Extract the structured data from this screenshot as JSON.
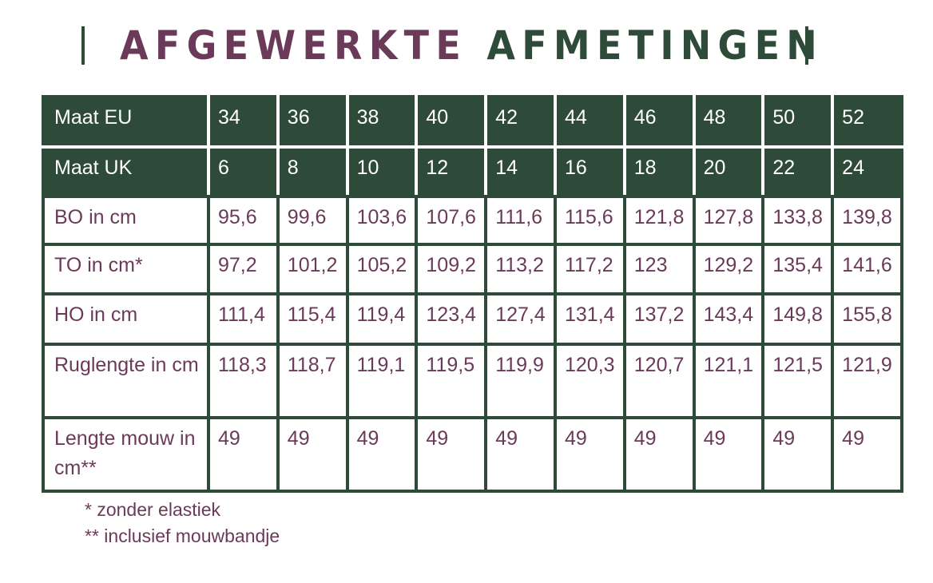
{
  "title": {
    "part1": "AFGEWERKTE",
    "part2": "AFMETINGEN"
  },
  "colors": {
    "green": "#2e4a38",
    "purple": "#6b3a58"
  },
  "table": {
    "rows": [
      {
        "label": "Maat EU",
        "header": true,
        "values": [
          "34",
          "36",
          "38",
          "40",
          "42",
          "44",
          "46",
          "48",
          "50",
          "52"
        ]
      },
      {
        "label": "Maat UK",
        "header": true,
        "values": [
          "6",
          "8",
          "10",
          "12",
          "14",
          "16",
          "18",
          "20",
          "22",
          "24"
        ]
      },
      {
        "label": "BO in cm",
        "values": [
          "95,6",
          "99,6",
          "103,6",
          "107,6",
          "111,6",
          "115,6",
          "121,8",
          "127,8",
          "133,8",
          "139,8"
        ]
      },
      {
        "label": "TO in cm*",
        "values": [
          "97,2",
          "101,2",
          "105,2",
          "109,2",
          "113,2",
          "117,2",
          "123",
          "129,2",
          "135,4",
          "141,6"
        ]
      },
      {
        "label": "HO in cm",
        "values": [
          "111,4",
          "115,4",
          "119,4",
          "123,4",
          "127,4",
          "131,4",
          "137,2",
          "143,4",
          "149,8",
          "155,8"
        ]
      },
      {
        "label": "Ruglengte in cm",
        "values": [
          "118,3",
          "118,7",
          "119,1",
          "119,5",
          "119,9",
          "120,3",
          "120,7",
          "121,1",
          "121,5",
          "121,9"
        ]
      },
      {
        "label": "Lengte mouw in cm**",
        "values": [
          "49",
          "49",
          "49",
          "49",
          "49",
          "49",
          "49",
          "49",
          "49",
          "49"
        ]
      }
    ]
  },
  "notes": [
    "* zonder elastiek",
    "** inclusief mouwbandje"
  ]
}
